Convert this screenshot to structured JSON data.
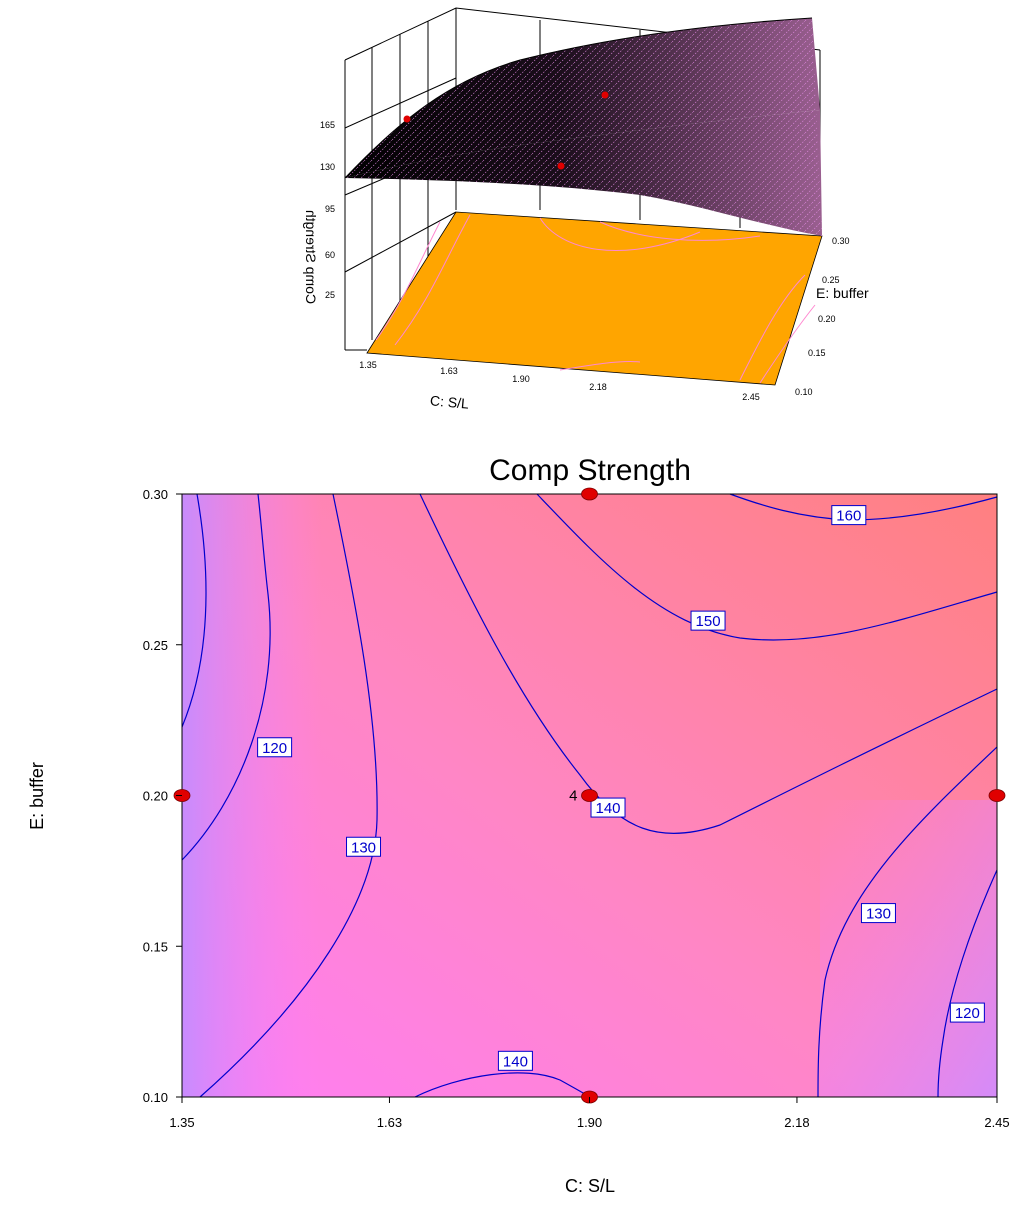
{
  "chart_data": [
    {
      "type": "surface3d",
      "zlabel": "Comp Strength",
      "xlabel": "C: S/L",
      "ylabel": "E: buffer",
      "x_ticks": [
        "1.35",
        "1.63",
        "1.90",
        "2.18",
        "2.45"
      ],
      "y_ticks": [
        "0.10",
        "0.15",
        "0.20",
        "0.25",
        "0.30"
      ],
      "z_ticks": [
        "25",
        "60",
        "95",
        "130",
        "165"
      ],
      "colors": {
        "floor": "#ffa500",
        "surface": "#000000",
        "mesh": "#e58be6"
      }
    },
    {
      "type": "contour",
      "title": "Comp Strength",
      "xlabel": "C: S/L",
      "ylabel": "E: buffer",
      "xlim": [
        1.35,
        2.45
      ],
      "ylim": [
        0.1,
        0.3
      ],
      "x_ticks": [
        "1.35",
        "1.63",
        "1.90",
        "2.18",
        "2.45"
      ],
      "y_ticks": [
        "0.10",
        "0.15",
        "0.20",
        "0.25",
        "0.30"
      ],
      "contour_levels": [
        "120",
        "130",
        "140",
        "150",
        "160"
      ],
      "contour_labels": [
        {
          "text": "160",
          "x": 2.25,
          "y": 0.293
        },
        {
          "text": "150",
          "x": 2.06,
          "y": 0.258
        },
        {
          "text": "120",
          "x": 1.475,
          "y": 0.216
        },
        {
          "text": "130",
          "x": 1.595,
          "y": 0.183
        },
        {
          "text": "140",
          "x": 1.925,
          "y": 0.196
        },
        {
          "text": "130",
          "x": 2.29,
          "y": 0.161
        },
        {
          "text": "120",
          "x": 2.41,
          "y": 0.128
        },
        {
          "text": "140",
          "x": 1.8,
          "y": 0.112
        }
      ],
      "design_points": [
        {
          "x": 1.9,
          "y": 0.3
        },
        {
          "x": 1.35,
          "y": 0.2
        },
        {
          "x": 1.9,
          "y": 0.2,
          "label": "4"
        },
        {
          "x": 2.45,
          "y": 0.2
        },
        {
          "x": 1.9,
          "y": 0.1
        }
      ],
      "colors": {
        "contour_line": "#0000cc",
        "point": "#e00000",
        "low": "#c98cff",
        "mid": "#ff80ee",
        "high": "#ff8080"
      }
    }
  ]
}
